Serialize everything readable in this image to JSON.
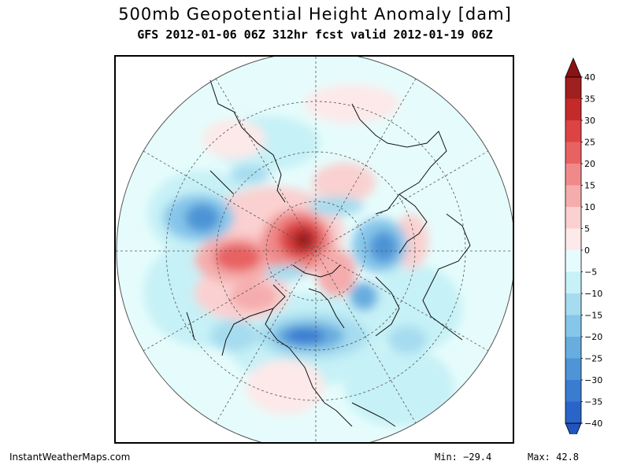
{
  "header": {
    "title": "500mb Geopotential Height Anomaly [dam]",
    "subtitle": "GFS 2012-01-06 06Z 312hr fcst valid 2012-01-19 06Z"
  },
  "colorbar": {
    "levels": [
      40,
      35,
      30,
      25,
      20,
      15,
      10,
      5,
      0,
      -5,
      -10,
      -15,
      -20,
      -25,
      -30,
      -35,
      -40
    ],
    "level_labels": [
      "40",
      "35",
      "30",
      "25",
      "20",
      "15",
      "10",
      "5",
      "0",
      "−5",
      "−10",
      "−15",
      "−20",
      "−25",
      "−30",
      "−35",
      "−40"
    ],
    "colors": [
      "#a01f1f",
      "#c52a2a",
      "#dc4444",
      "#e86262",
      "#f08a8a",
      "#f5acac",
      "#fad0d0",
      "#fde9e9",
      "#e6fcfc",
      "#c6f1f6",
      "#a6dcef",
      "#86c6ea",
      "#68addf",
      "#4e94d6",
      "#3a7cd0",
      "#2a64c8"
    ]
  },
  "footer": {
    "site": "InstantWeatherMaps.com",
    "min_label": "Min: −29.4",
    "max_label": "Max:  42.8"
  },
  "map": {
    "projection": "north polar stereographic",
    "anomaly_min": -29.4,
    "anomaly_max": 42.8
  }
}
